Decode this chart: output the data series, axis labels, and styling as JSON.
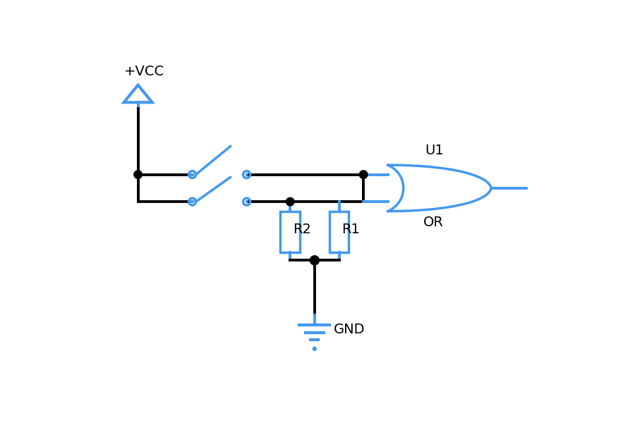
{
  "bg_color": "#ffffff",
  "wire_color": "#000000",
  "component_color": "#4499ee",
  "text_color": "#000000",
  "line_width": 2.8,
  "component_lw": 2.5,
  "figsize": [
    9.0,
    6.2
  ],
  "dpi": 100,
  "xlim": [
    0,
    9
  ],
  "ylim": [
    0,
    6.2
  ],
  "labels": {
    "vcc": "+VCC",
    "gnd": "GND",
    "r1": "R1",
    "r2": "R2",
    "u1": "U1",
    "or": "OR"
  },
  "label_fontsize": 14
}
